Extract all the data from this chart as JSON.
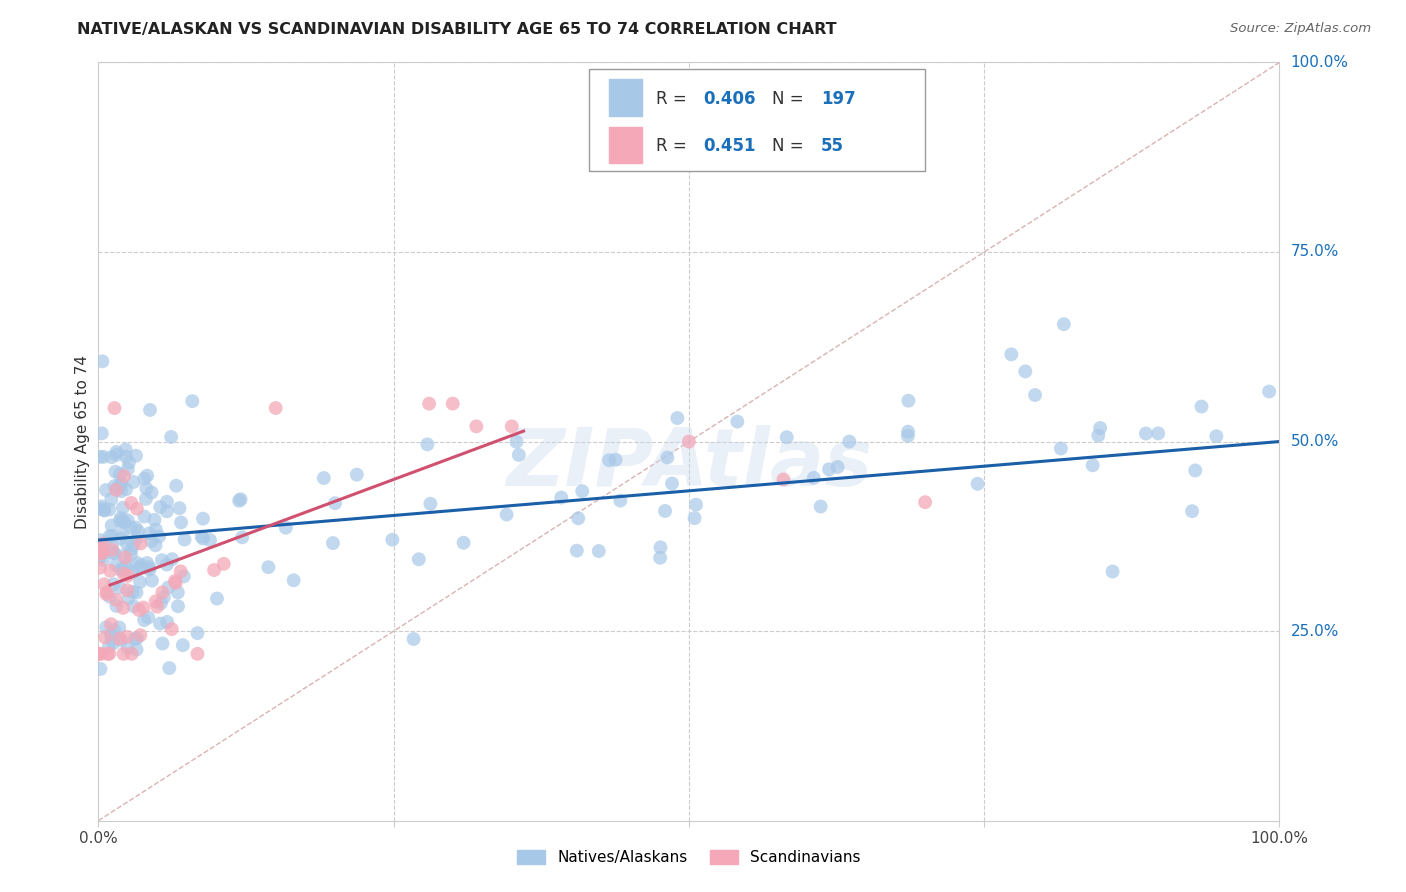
{
  "title": "NATIVE/ALASKAN VS SCANDINAVIAN DISABILITY AGE 65 TO 74 CORRELATION CHART",
  "source": "Source: ZipAtlas.com",
  "ylabel": "Disability Age 65 to 74",
  "watermark": "ZIPAtlas",
  "legend_label_1": "Natives/Alaskans",
  "legend_label_2": "Scandinavians",
  "R1": "0.406",
  "N1": "197",
  "R2": "0.451",
  "N2": "55",
  "color_blue": "#a8c8e8",
  "color_pink": "#f4a8b8",
  "line_blue": "#1a5fa8",
  "line_pink": "#d05070",
  "line_diag_color": "#d0a0a0",
  "background": "#ffffff",
  "grid_color": "#cccccc",
  "ytick_color": "#1a6fba",
  "title_color": "#222222",
  "source_color": "#666666"
}
